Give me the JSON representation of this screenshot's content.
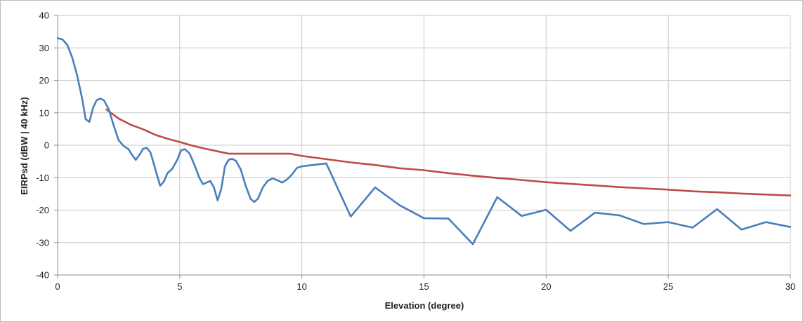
{
  "chart_data": {
    "type": "line",
    "title": "",
    "xlabel": "Elevation (degree)",
    "ylabel": "EIRPsd (dBW | 40 kHz)",
    "xlim": [
      0,
      30
    ],
    "ylim": [
      -40,
      40
    ],
    "x_ticks": [
      0,
      5,
      10,
      15,
      20,
      25,
      30
    ],
    "y_ticks": [
      -40,
      -30,
      -20,
      -10,
      0,
      10,
      20,
      30,
      40
    ],
    "grid": true,
    "legend": "none",
    "series": [
      {
        "color": "#4A7EBB",
        "points": [
          [
            0,
            33
          ],
          [
            0.2,
            32.6
          ],
          [
            0.4,
            30.9
          ],
          [
            0.6,
            27
          ],
          [
            0.8,
            21.5
          ],
          [
            1.0,
            14.5
          ],
          [
            1.15,
            8
          ],
          [
            1.3,
            7.2
          ],
          [
            1.45,
            11.5
          ],
          [
            1.6,
            13.9
          ],
          [
            1.75,
            14.4
          ],
          [
            1.9,
            13.8
          ],
          [
            2.1,
            11
          ],
          [
            2.3,
            6
          ],
          [
            2.5,
            1.5
          ],
          [
            2.7,
            -0.2
          ],
          [
            2.9,
            -1.2
          ],
          [
            3.05,
            -3
          ],
          [
            3.2,
            -4.5
          ],
          [
            3.35,
            -3
          ],
          [
            3.5,
            -1.1
          ],
          [
            3.65,
            -0.8
          ],
          [
            3.8,
            -2.2
          ],
          [
            3.95,
            -6
          ],
          [
            4.1,
            -10
          ],
          [
            4.2,
            -12.5
          ],
          [
            4.35,
            -11.2
          ],
          [
            4.5,
            -8.6
          ],
          [
            4.7,
            -7.2
          ],
          [
            4.9,
            -4.5
          ],
          [
            5.05,
            -1.6
          ],
          [
            5.2,
            -1.2
          ],
          [
            5.4,
            -2.5
          ],
          [
            5.6,
            -6
          ],
          [
            5.8,
            -10
          ],
          [
            5.95,
            -12
          ],
          [
            6.1,
            -11.5
          ],
          [
            6.25,
            -11
          ],
          [
            6.4,
            -13
          ],
          [
            6.55,
            -17
          ],
          [
            6.7,
            -13.5
          ],
          [
            6.85,
            -6.5
          ],
          [
            7.0,
            -4.5
          ],
          [
            7.15,
            -4.2
          ],
          [
            7.3,
            -4.8
          ],
          [
            7.5,
            -7.5
          ],
          [
            7.7,
            -12.5
          ],
          [
            7.9,
            -16.5
          ],
          [
            8.05,
            -17.5
          ],
          [
            8.2,
            -16.5
          ],
          [
            8.4,
            -13
          ],
          [
            8.6,
            -11
          ],
          [
            8.8,
            -10.2
          ],
          [
            9.0,
            -10.8
          ],
          [
            9.2,
            -11.5
          ],
          [
            9.4,
            -10.5
          ],
          [
            9.6,
            -9
          ],
          [
            9.8,
            -7
          ],
          [
            10.0,
            -6.5
          ],
          [
            11.0,
            -5.6
          ],
          [
            12.0,
            -22
          ],
          [
            13.0,
            -13
          ],
          [
            14.0,
            -18.5
          ],
          [
            15.0,
            -22.5
          ],
          [
            16.0,
            -22.6
          ],
          [
            17.0,
            -30.5
          ],
          [
            18.0,
            -16
          ],
          [
            19.0,
            -21.8
          ],
          [
            20.0,
            -19.9
          ],
          [
            21.0,
            -26.4
          ],
          [
            22.0,
            -20.8
          ],
          [
            23.0,
            -21.6
          ],
          [
            24.0,
            -24.3
          ],
          [
            25.0,
            -23.7
          ],
          [
            26.0,
            -25.4
          ],
          [
            27.0,
            -19.7
          ],
          [
            28.0,
            -26
          ],
          [
            29.0,
            -23.7
          ],
          [
            30.0,
            -25.2
          ]
        ]
      },
      {
        "color": "#BE4B48",
        "points": [
          [
            2.0,
            11
          ],
          [
            2.5,
            8.2
          ],
          [
            3.0,
            6.3
          ],
          [
            3.5,
            4.9
          ],
          [
            4.0,
            3.2
          ],
          [
            4.5,
            2.0
          ],
          [
            5.0,
            1.0
          ],
          [
            5.5,
            -0.1
          ],
          [
            6.0,
            -1.0
          ],
          [
            6.5,
            -1.8
          ],
          [
            7.0,
            -2.6
          ],
          [
            7.5,
            -2.6
          ],
          [
            8.0,
            -2.6
          ],
          [
            8.5,
            -2.6
          ],
          [
            9.0,
            -2.6
          ],
          [
            9.5,
            -2.6
          ],
          [
            10.0,
            -3.3
          ],
          [
            11.0,
            -4.3
          ],
          [
            12.0,
            -5.3
          ],
          [
            13.0,
            -6.1
          ],
          [
            14.0,
            -7.1
          ],
          [
            15.0,
            -7.7
          ],
          [
            16.0,
            -8.6
          ],
          [
            17.0,
            -9.4
          ],
          [
            18.0,
            -10.1
          ],
          [
            19.0,
            -10.7
          ],
          [
            20.0,
            -11.4
          ],
          [
            21.0,
            -11.9
          ],
          [
            22.0,
            -12.4
          ],
          [
            23.0,
            -12.9
          ],
          [
            24.0,
            -13.3
          ],
          [
            25.0,
            -13.7
          ],
          [
            26.0,
            -14.2
          ],
          [
            27.0,
            -14.5
          ],
          [
            28.0,
            -14.9
          ],
          [
            29.0,
            -15.2
          ],
          [
            30.0,
            -15.5
          ]
        ]
      }
    ]
  }
}
